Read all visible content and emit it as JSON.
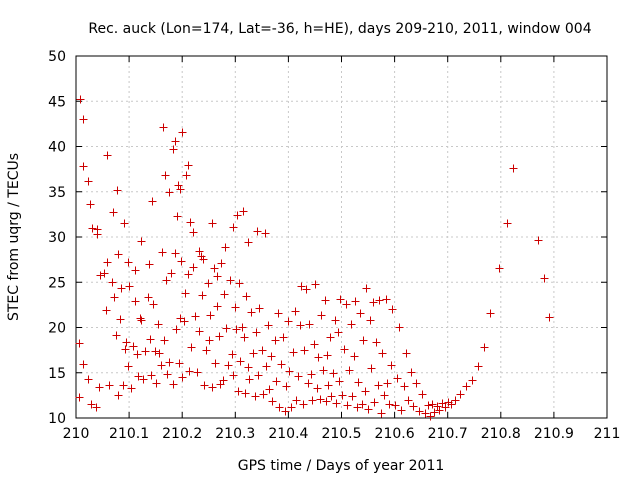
{
  "chart_data": {
    "type": "scatter",
    "title": "Rec. auck (Lon=174, Lat=-36, h=HE), days 209-210, 2011, window 004",
    "xlabel": "GPS time / Days of year 2011",
    "ylabel": "STEC from uqrg / TECUs",
    "xlim": [
      210,
      211
    ],
    "ylim": [
      10,
      50
    ],
    "xticks": [
      "210",
      "210.1",
      "210.2",
      "210.3",
      "210.4",
      "210.5",
      "210.6",
      "210.7",
      "210.8",
      "210.9",
      "211"
    ],
    "yticks": [
      "10",
      "15",
      "20",
      "25",
      "30",
      "35",
      "40",
      "45",
      "50"
    ],
    "grid": true,
    "marker": "plus",
    "colors": {
      "marker": "#cc0000",
      "axis": "#000000",
      "grid": "#c8c8c8"
    },
    "series": [
      {
        "points": [
          [
            210.007,
            45.2
          ],
          [
            210.014,
            43.0
          ],
          [
            210.014,
            37.9
          ],
          [
            210.022,
            36.2
          ],
          [
            210.026,
            33.6
          ],
          [
            210.03,
            31.0
          ],
          [
            210.039,
            30.9
          ],
          [
            210.04,
            30.3
          ],
          [
            210.058,
            39.1
          ],
          [
            210.07,
            32.8
          ],
          [
            210.077,
            35.2
          ],
          [
            210.08,
            28.1
          ],
          [
            210.09,
            31.5
          ],
          [
            210.098,
            27.2
          ],
          [
            210.112,
            26.4
          ],
          [
            210.123,
            29.6
          ],
          [
            210.137,
            27.0
          ],
          [
            210.144,
            34.0
          ],
          [
            210.163,
            42.1
          ],
          [
            210.168,
            36.8
          ],
          [
            210.175,
            35.0
          ],
          [
            210.182,
            39.7
          ],
          [
            210.186,
            40.6
          ],
          [
            210.193,
            35.7
          ],
          [
            210.196,
            35.3
          ],
          [
            210.2,
            41.6
          ],
          [
            210.21,
            38.0
          ],
          [
            210.207,
            36.8
          ],
          [
            210.214,
            31.7
          ],
          [
            210.221,
            30.6
          ],
          [
            210.231,
            28.5
          ],
          [
            210.24,
            27.6
          ],
          [
            210.256,
            31.6
          ],
          [
            210.266,
            25.7
          ],
          [
            210.28,
            28.9
          ],
          [
            210.296,
            31.1
          ],
          [
            210.303,
            32.4
          ],
          [
            210.315,
            32.9
          ],
          [
            210.324,
            29.5
          ],
          [
            210.34,
            30.7
          ],
          [
            210.356,
            30.4
          ],
          [
            210.005,
            18.3
          ],
          [
            210.006,
            12.3
          ],
          [
            210.014,
            16.0
          ],
          [
            210.022,
            14.3
          ],
          [
            210.028,
            11.5
          ],
          [
            210.037,
            11.2
          ],
          [
            210.044,
            13.4
          ],
          [
            210.046,
            25.8
          ],
          [
            210.053,
            26.0
          ],
          [
            210.057,
            21.9
          ],
          [
            210.058,
            27.2
          ],
          [
            210.062,
            13.7
          ],
          [
            210.068,
            25.0
          ],
          [
            210.072,
            23.4
          ],
          [
            210.075,
            19.2
          ],
          [
            210.079,
            12.5
          ],
          [
            210.082,
            20.9
          ],
          [
            210.085,
            24.4
          ],
          [
            210.088,
            13.7
          ],
          [
            210.093,
            17.6
          ],
          [
            210.095,
            18.4
          ],
          [
            210.098,
            15.7
          ],
          [
            210.1,
            24.6
          ],
          [
            210.104,
            13.3
          ],
          [
            210.108,
            18.0
          ],
          [
            210.111,
            22.9
          ],
          [
            210.114,
            17.1
          ],
          [
            210.117,
            14.6
          ],
          [
            210.12,
            21.0
          ],
          [
            210.123,
            20.8
          ],
          [
            210.126,
            14.3
          ],
          [
            210.13,
            17.4
          ],
          [
            210.136,
            23.4
          ],
          [
            210.139,
            18.7
          ],
          [
            210.141,
            14.7
          ],
          [
            210.145,
            22.6
          ],
          [
            210.149,
            17.4
          ],
          [
            210.15,
            13.9
          ],
          [
            210.155,
            20.4
          ],
          [
            210.157,
            17.2
          ],
          [
            210.16,
            15.9
          ],
          [
            210.162,
            28.3
          ],
          [
            210.165,
            18.6
          ],
          [
            210.17,
            25.2
          ],
          [
            210.172,
            14.9
          ],
          [
            210.176,
            16.2
          ],
          [
            210.179,
            26.0
          ],
          [
            210.183,
            13.8
          ],
          [
            210.186,
            28.2
          ],
          [
            210.189,
            19.8
          ],
          [
            210.191,
            32.3
          ],
          [
            210.194,
            16.1
          ],
          [
            210.196,
            21.1
          ],
          [
            210.197,
            27.4
          ],
          [
            210.2,
            14.5
          ],
          [
            210.204,
            20.7
          ],
          [
            210.206,
            23.8
          ],
          [
            210.21,
            25.9
          ],
          [
            210.213,
            15.2
          ],
          [
            210.217,
            17.8
          ],
          [
            210.22,
            26.7
          ],
          [
            210.224,
            21.3
          ],
          [
            210.228,
            15.1
          ],
          [
            210.232,
            19.6
          ],
          [
            210.235,
            27.9
          ],
          [
            210.238,
            23.6
          ],
          [
            210.241,
            13.7
          ],
          [
            210.245,
            17.5
          ],
          [
            210.248,
            24.9
          ],
          [
            210.251,
            18.6
          ],
          [
            210.253,
            21.4
          ],
          [
            210.256,
            13.4
          ],
          [
            210.26,
            26.6
          ],
          [
            210.262,
            16.1
          ],
          [
            210.265,
            22.4
          ],
          [
            210.269,
            19.1
          ],
          [
            210.271,
            13.8
          ],
          [
            210.274,
            27.1
          ],
          [
            210.276,
            14.2
          ],
          [
            210.279,
            23.7
          ],
          [
            210.283,
            20.0
          ],
          [
            210.286,
            15.9
          ],
          [
            210.29,
            25.2
          ],
          [
            210.293,
            17.1
          ],
          [
            210.296,
            14.8
          ],
          [
            210.3,
            22.3
          ],
          [
            210.302,
            19.8
          ],
          [
            210.305,
            13.0
          ],
          [
            210.307,
            24.9
          ],
          [
            210.309,
            16.3
          ],
          [
            210.312,
            20.1
          ],
          [
            210.316,
            18.9
          ],
          [
            210.318,
            12.8
          ],
          [
            210.321,
            23.5
          ],
          [
            210.323,
            15.6
          ],
          [
            210.326,
            14.3
          ],
          [
            210.33,
            21.7
          ],
          [
            210.333,
            17.2
          ],
          [
            210.337,
            12.4
          ],
          [
            210.339,
            19.5
          ],
          [
            210.342,
            14.7
          ],
          [
            210.345,
            22.2
          ],
          [
            210.35,
            17.5
          ],
          [
            210.353,
            12.7
          ],
          [
            210.357,
            15.8
          ],
          [
            210.361,
            20.3
          ],
          [
            210.364,
            13.2
          ],
          [
            210.367,
            16.9
          ],
          [
            210.37,
            11.9
          ],
          [
            210.374,
            18.6
          ],
          [
            210.377,
            14.1
          ],
          [
            210.38,
            21.6
          ],
          [
            210.383,
            11.2
          ],
          [
            210.386,
            16.0
          ],
          [
            210.39,
            18.9
          ],
          [
            210.393,
            10.8
          ],
          [
            210.396,
            13.5
          ],
          [
            210.399,
            20.7
          ],
          [
            210.402,
            15.2
          ],
          [
            210.405,
            11.2
          ],
          [
            210.409,
            17.3
          ],
          [
            210.412,
            21.8
          ],
          [
            210.415,
            12.0
          ],
          [
            210.418,
            14.6
          ],
          [
            210.421,
            20.3
          ],
          [
            210.424,
            24.6
          ],
          [
            210.427,
            11.6
          ],
          [
            210.43,
            17.5
          ],
          [
            210.433,
            24.2
          ],
          [
            210.436,
            13.9
          ],
          [
            210.439,
            20.4
          ],
          [
            210.442,
            14.9
          ],
          [
            210.445,
            12.0
          ],
          [
            210.448,
            18.2
          ],
          [
            210.451,
            24.8
          ],
          [
            210.453,
            13.3
          ],
          [
            210.456,
            16.7
          ],
          [
            210.459,
            12.1
          ],
          [
            210.462,
            21.4
          ],
          [
            210.465,
            15.3
          ],
          [
            210.468,
            23.0
          ],
          [
            210.47,
            11.9
          ],
          [
            210.472,
            17.0
          ],
          [
            210.475,
            13.6
          ],
          [
            210.478,
            18.9
          ],
          [
            210.481,
            12.4
          ],
          [
            210.484,
            15.0
          ],
          [
            210.487,
            20.8
          ],
          [
            210.49,
            11.7
          ],
          [
            210.493,
            19.5
          ],
          [
            210.496,
            14.1
          ],
          [
            210.498,
            23.1
          ],
          [
            210.501,
            12.5
          ],
          [
            210.505,
            17.6
          ],
          [
            210.508,
            22.6
          ],
          [
            210.51,
            11.4
          ],
          [
            210.514,
            15.3
          ],
          [
            210.517,
            20.4
          ],
          [
            210.52,
            12.4
          ],
          [
            210.523,
            16.8
          ],
          [
            210.526,
            22.9
          ],
          [
            210.529,
            11.2
          ],
          [
            210.532,
            14.0
          ],
          [
            210.535,
            21.6
          ],
          [
            210.538,
            11.5
          ],
          [
            210.541,
            18.6
          ],
          [
            210.545,
            13.0
          ],
          [
            210.547,
            24.4
          ],
          [
            210.55,
            11.0
          ],
          [
            210.553,
            20.8
          ],
          [
            210.556,
            15.5
          ],
          [
            210.559,
            22.8
          ],
          [
            210.562,
            11.8
          ],
          [
            210.565,
            18.4
          ],
          [
            210.568,
            13.7
          ],
          [
            210.571,
            23.0
          ],
          [
            210.574,
            10.6
          ],
          [
            210.577,
            17.2
          ],
          [
            210.58,
            12.5
          ],
          [
            210.583,
            23.1
          ],
          [
            210.586,
            13.9
          ],
          [
            210.59,
            11.6
          ],
          [
            210.593,
            15.9
          ],
          [
            210.596,
            22.0
          ],
          [
            210.6,
            11.4
          ],
          [
            210.604,
            14.4
          ],
          [
            210.608,
            20.1
          ],
          [
            210.612,
            10.9
          ],
          [
            210.617,
            13.5
          ],
          [
            210.621,
            17.2
          ],
          [
            210.625,
            12.0
          ],
          [
            210.63,
            15.1
          ],
          [
            210.635,
            11.3
          ],
          [
            210.64,
            13.9
          ],
          [
            210.646,
            10.8
          ],
          [
            210.651,
            12.6
          ],
          [
            210.657,
            10.5
          ],
          [
            210.662,
            11.4
          ],
          [
            210.667,
            10.2
          ],
          [
            210.671,
            11.5
          ],
          [
            210.675,
            10.7
          ],
          [
            210.679,
            11.3
          ],
          [
            210.684,
            10.9
          ],
          [
            210.689,
            11.7
          ],
          [
            210.694,
            11.2
          ],
          [
            210.7,
            11.8
          ],
          [
            210.707,
            11.6
          ],
          [
            210.714,
            12.0
          ],
          [
            210.724,
            12.6
          ],
          [
            210.734,
            13.5
          ],
          [
            210.745,
            14.2
          ],
          [
            210.757,
            15.8
          ],
          [
            210.769,
            17.8
          ],
          [
            210.78,
            21.6
          ],
          [
            210.797,
            26.6
          ],
          [
            210.811,
            31.5
          ],
          [
            210.823,
            37.6
          ],
          [
            210.87,
            29.7
          ],
          [
            210.882,
            25.5
          ],
          [
            210.89,
            21.2
          ]
        ]
      }
    ]
  }
}
